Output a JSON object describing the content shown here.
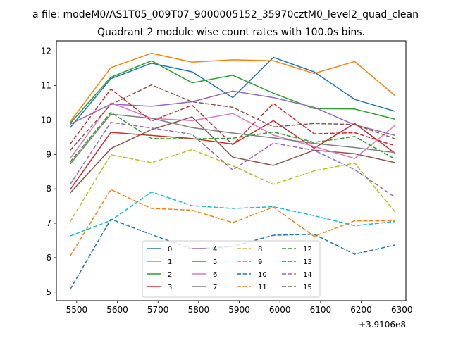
{
  "chart_data": {
    "type": "line",
    "suptitle": "a file: modeM0/AS1T05_009T07_9000005152_35970cztM0_level2_quad_clean",
    "title": "Quadrant 2 module wise count rates with 100.0s bins.",
    "xlabel": "",
    "ylabel": "",
    "x_offset_label": "+3.9106e8",
    "x": [
      5484,
      5584,
      5684,
      5784,
      5884,
      5984,
      6084,
      6184,
      6284
    ],
    "x_tick_values": [
      5500,
      5600,
      5700,
      5800,
      5900,
      6000,
      6100,
      6200,
      6300
    ],
    "x_tick_labels": [
      "5500",
      "5600",
      "5700",
      "5800",
      "5900",
      "6000",
      "6100",
      "6200",
      "6300"
    ],
    "y_ticks": [
      5,
      6,
      7,
      8,
      9,
      10,
      11,
      12
    ],
    "xlim": [
      5450,
      6310
    ],
    "ylim": [
      4.75,
      12.3
    ],
    "grid": false,
    "legend_position": "lower-center",
    "legend_columns": 4,
    "series": [
      {
        "name": "0",
        "color": "#1f77b4",
        "dash": "solid",
        "values": [
          9.78,
          11.2,
          11.65,
          11.4,
          10.65,
          11.82,
          11.4,
          10.6,
          10.25
        ]
      },
      {
        "name": "1",
        "color": "#ff7f0e",
        "dash": "solid",
        "values": [
          9.95,
          11.52,
          11.94,
          11.68,
          11.75,
          11.72,
          11.35,
          11.7,
          10.7
        ]
      },
      {
        "name": "2",
        "color": "#2ca02c",
        "dash": "solid",
        "values": [
          9.9,
          11.24,
          11.72,
          11.08,
          11.3,
          10.78,
          10.33,
          10.32,
          10.02
        ]
      },
      {
        "name": "3",
        "color": "#d62728",
        "dash": "solid",
        "values": [
          7.98,
          9.64,
          9.55,
          9.46,
          9.3,
          9.98,
          9.18,
          9.9,
          9.03
        ]
      },
      {
        "name": "4",
        "color": "#9467bd",
        "dash": "solid",
        "values": [
          9.88,
          10.46,
          10.4,
          10.53,
          10.84,
          10.65,
          10.37,
          9.86,
          9.55
        ]
      },
      {
        "name": "5",
        "color": "#8c564b",
        "dash": "solid",
        "values": [
          7.88,
          9.17,
          9.72,
          10.09,
          8.92,
          8.68,
          9.12,
          9.02,
          8.76
        ]
      },
      {
        "name": "6",
        "color": "#e377c2",
        "dash": "solid",
        "values": [
          8.88,
          10.5,
          10.05,
          9.98,
          10.19,
          9.56,
          9.23,
          8.88,
          9.85
        ]
      },
      {
        "name": "7",
        "color": "#7f7f7f",
        "dash": "solid",
        "values": [
          8.72,
          10.17,
          10.05,
          9.78,
          9.62,
          9.48,
          9.32,
          9.2,
          9.05
        ]
      },
      {
        "name": "8",
        "color": "#bcbd22",
        "dash": "dashed",
        "values": [
          7.05,
          8.99,
          8.76,
          9.14,
          8.67,
          8.13,
          8.52,
          8.75,
          7.32
        ]
      },
      {
        "name": "9",
        "color": "#17becf",
        "dash": "dashed",
        "values": [
          6.63,
          7.08,
          7.91,
          7.51,
          7.43,
          7.48,
          7.22,
          6.93,
          7.05
        ]
      },
      {
        "name": "10",
        "color": "#1f77b4",
        "dash": "dashed",
        "values": [
          5.08,
          7.12,
          6.67,
          6.25,
          6.33,
          6.65,
          6.68,
          6.1,
          6.37
        ]
      },
      {
        "name": "11",
        "color": "#ff7f0e",
        "dash": "dashed",
        "values": [
          6.05,
          7.98,
          7.43,
          7.38,
          7.02,
          7.47,
          6.62,
          7.07,
          7.07
        ]
      },
      {
        "name": "12",
        "color": "#2ca02c",
        "dash": "dashed",
        "values": [
          8.78,
          10.22,
          9.46,
          9.45,
          9.47,
          9.65,
          9.35,
          9.52,
          8.86
        ]
      },
      {
        "name": "13",
        "color": "#d62728",
        "dash": "dashed",
        "values": [
          9.3,
          10.9,
          9.97,
          10.43,
          9.28,
          10.48,
          9.6,
          9.63,
          9.25
        ]
      },
      {
        "name": "14",
        "color": "#9467bd",
        "dash": "dashed",
        "values": [
          8.13,
          9.93,
          9.77,
          9.58,
          8.55,
          9.33,
          9.12,
          8.56,
          7.75
        ]
      },
      {
        "name": "15",
        "color": "#8c564b",
        "dash": "dashed",
        "values": [
          9.12,
          10.45,
          11.02,
          10.53,
          10.37,
          9.8,
          9.9,
          9.87,
          9.45
        ]
      }
    ]
  }
}
